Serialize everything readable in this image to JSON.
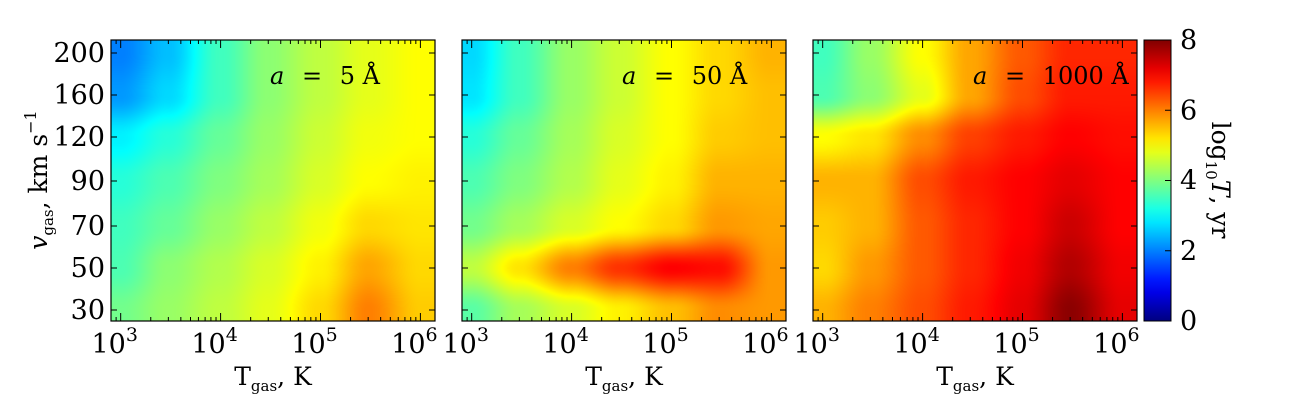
{
  "chart_data": {
    "type": "heatmap",
    "colormap": "jet",
    "grid": false,
    "shared_axes": {
      "x_scale": "log",
      "xlim": [
        800,
        1400000
      ],
      "x_ticks": [
        1000,
        10000,
        100000,
        1000000
      ],
      "x_tick_labels": [
        {
          "base": "10",
          "exp": "3"
        },
        {
          "base": "10",
          "exp": "4"
        },
        {
          "base": "10",
          "exp": "5"
        },
        {
          "base": "10",
          "exp": "6"
        }
      ],
      "y_scale": "nonuniform",
      "y_ticks": [
        30,
        50,
        70,
        90,
        120,
        160,
        200
      ],
      "y_tick_labels": [
        "30",
        "50",
        "70",
        "90",
        "120",
        "160",
        "200"
      ],
      "xlabel": {
        "main": "T",
        "sub": "gas",
        "rest": ",  K"
      },
      "ylabel": {
        "main": "v",
        "sub": "gas",
        "rest": ",  km s",
        "sup": "−1"
      }
    },
    "x_grid": [
      1000,
      3000,
      10000,
      30000,
      100000,
      300000,
      1000000
    ],
    "y_grid": [
      30,
      50,
      70,
      90,
      120,
      160,
      200
    ],
    "panels": [
      {
        "label": {
          "var": "a",
          "eq": "=",
          "value": "5 Å"
        },
        "z": [
          [
            3.9,
            4.2,
            4.5,
            4.8,
            5.3,
            6.0,
            5.4
          ],
          [
            3.6,
            4.1,
            4.4,
            4.7,
            5.1,
            5.7,
            5.3
          ],
          [
            3.5,
            3.8,
            4.2,
            4.5,
            4.9,
            5.3,
            5.2
          ],
          [
            3.3,
            3.6,
            4.0,
            4.3,
            4.7,
            5.0,
            5.1
          ],
          [
            2.9,
            3.3,
            3.8,
            4.2,
            4.6,
            4.9,
            5.0
          ],
          [
            2.2,
            2.7,
            3.5,
            4.1,
            4.5,
            4.8,
            5.0
          ],
          [
            2.0,
            2.5,
            3.5,
            4.1,
            4.5,
            4.8,
            5.0
          ]
        ]
      },
      {
        "label": {
          "var": "a",
          "eq": "=",
          "value": "50 Å"
        },
        "z": [
          [
            3.7,
            4.3,
            4.7,
            5.1,
            5.5,
            5.9,
            5.8
          ],
          [
            4.5,
            5.2,
            6.0,
            6.6,
            7.0,
            6.9,
            5.8
          ],
          [
            3.9,
            4.3,
            4.7,
            5.0,
            5.3,
            5.8,
            5.7
          ],
          [
            3.6,
            4.0,
            4.4,
            4.8,
            5.1,
            5.6,
            5.6
          ],
          [
            3.3,
            3.8,
            4.3,
            4.7,
            5.0,
            5.4,
            5.5
          ],
          [
            2.8,
            3.5,
            4.2,
            4.6,
            5.0,
            5.3,
            5.5
          ],
          [
            2.7,
            3.5,
            4.2,
            4.6,
            5.0,
            5.3,
            5.6
          ]
        ]
      },
      {
        "label": {
          "var": "a",
          "eq": "=",
          "value": "1000 Å"
        },
        "z": [
          [
            5.6,
            6.0,
            6.4,
            6.8,
            7.2,
            7.9,
            7.2
          ],
          [
            5.3,
            5.8,
            6.3,
            6.7,
            7.1,
            7.6,
            7.1
          ],
          [
            5.4,
            5.6,
            6.3,
            6.7,
            7.0,
            7.4,
            7.0
          ],
          [
            5.6,
            5.6,
            6.4,
            6.8,
            7.0,
            7.2,
            7.0
          ],
          [
            5.0,
            5.2,
            5.9,
            6.5,
            6.8,
            7.0,
            6.9
          ],
          [
            3.6,
            4.1,
            4.8,
            5.7,
            6.4,
            6.8,
            6.8
          ],
          [
            3.5,
            4.2,
            5.0,
            5.7,
            6.3,
            6.7,
            6.7
          ]
        ]
      }
    ],
    "colorbar": {
      "range": [
        0,
        8
      ],
      "ticks": [
        0,
        2,
        4,
        6,
        8
      ],
      "tick_labels": [
        "0",
        "2",
        "4",
        "6",
        "8"
      ],
      "label": {
        "pre": "log",
        "sub": "10",
        "sym": "T",
        "rest": ",  yr"
      }
    }
  }
}
